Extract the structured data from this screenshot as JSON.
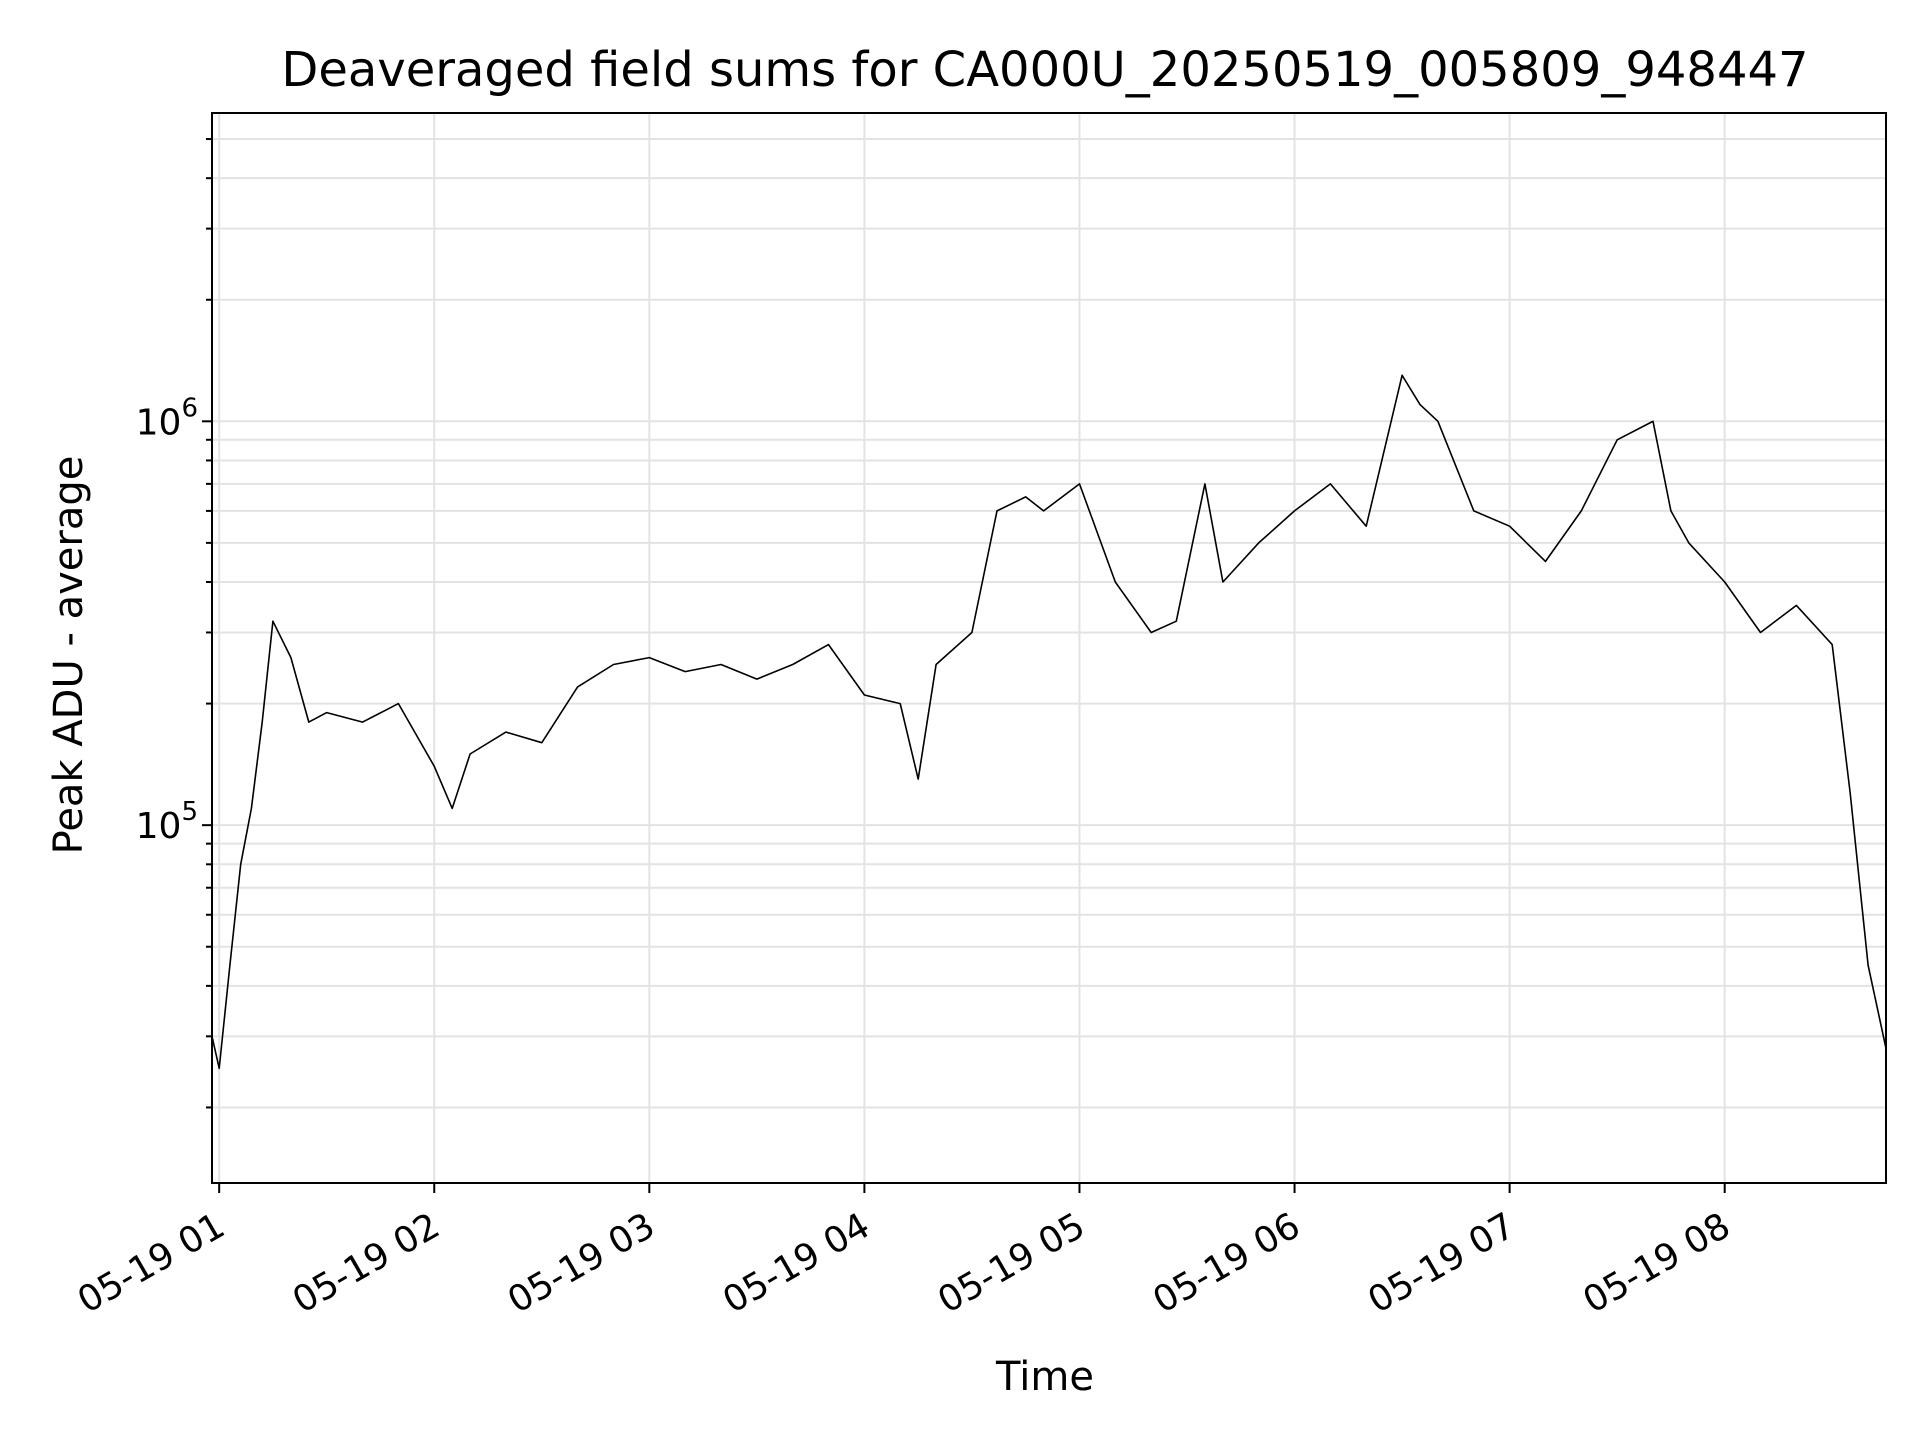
{
  "chart_data": {
    "type": "line",
    "title": "Deaveraged field sums for CA000U_20250519_005809_948447",
    "xlabel": "Time",
    "ylabel": "Peak ADU - average",
    "y_scale": "log",
    "xlim": [
      "2025-05-19 00:58",
      "2025-05-19 08:45"
    ],
    "ylim": [
      13000,
      5800000
    ],
    "x_ticks": [
      {
        "t": "2025-05-19 01:00",
        "label": "05-19 01"
      },
      {
        "t": "2025-05-19 02:00",
        "label": "05-19 02"
      },
      {
        "t": "2025-05-19 03:00",
        "label": "05-19 03"
      },
      {
        "t": "2025-05-19 04:00",
        "label": "05-19 04"
      },
      {
        "t": "2025-05-19 05:00",
        "label": "05-19 05"
      },
      {
        "t": "2025-05-19 06:00",
        "label": "05-19 06"
      },
      {
        "t": "2025-05-19 07:00",
        "label": "05-19 07"
      },
      {
        "t": "2025-05-19 08:00",
        "label": "05-19 08"
      }
    ],
    "y_ticks": [
      {
        "value": 100000,
        "base": "10",
        "exp": "5"
      },
      {
        "value": 1000000,
        "base": "10",
        "exp": "6"
      }
    ],
    "grid": true,
    "series": [
      {
        "color": "#000000",
        "x": [
          "2025-05-19 00:58",
          "2025-05-19 01:00",
          "2025-05-19 01:03",
          "2025-05-19 01:06",
          "2025-05-19 01:09",
          "2025-05-19 01:12",
          "2025-05-19 01:15",
          "2025-05-19 01:20",
          "2025-05-19 01:25",
          "2025-05-19 01:30",
          "2025-05-19 01:40",
          "2025-05-19 01:50",
          "2025-05-19 02:00",
          "2025-05-19 02:05",
          "2025-05-19 02:10",
          "2025-05-19 02:20",
          "2025-05-19 02:30",
          "2025-05-19 02:40",
          "2025-05-19 02:50",
          "2025-05-19 03:00",
          "2025-05-19 03:10",
          "2025-05-19 03:20",
          "2025-05-19 03:30",
          "2025-05-19 03:40",
          "2025-05-19 03:50",
          "2025-05-19 04:00",
          "2025-05-19 04:10",
          "2025-05-19 04:15",
          "2025-05-19 04:20",
          "2025-05-19 04:30",
          "2025-05-19 04:37",
          "2025-05-19 04:45",
          "2025-05-19 04:50",
          "2025-05-19 05:00",
          "2025-05-19 05:10",
          "2025-05-19 05:20",
          "2025-05-19 05:27",
          "2025-05-19 05:35",
          "2025-05-19 05:40",
          "2025-05-19 05:50",
          "2025-05-19 06:00",
          "2025-05-19 06:10",
          "2025-05-19 06:20",
          "2025-05-19 06:30",
          "2025-05-19 06:35",
          "2025-05-19 06:40",
          "2025-05-19 06:50",
          "2025-05-19 07:00",
          "2025-05-19 07:10",
          "2025-05-19 07:20",
          "2025-05-19 07:30",
          "2025-05-19 07:40",
          "2025-05-19 07:45",
          "2025-05-19 07:50",
          "2025-05-19 08:00",
          "2025-05-19 08:10",
          "2025-05-19 08:20",
          "2025-05-19 08:30",
          "2025-05-19 08:35",
          "2025-05-19 08:40",
          "2025-05-19 08:45"
        ],
        "y": [
          30000,
          25000,
          45000,
          80000,
          110000,
          180000,
          320000,
          260000,
          180000,
          190000,
          180000,
          200000,
          140000,
          110000,
          150000,
          170000,
          160000,
          220000,
          250000,
          260000,
          240000,
          250000,
          230000,
          250000,
          280000,
          210000,
          200000,
          130000,
          250000,
          300000,
          600000,
          650000,
          600000,
          700000,
          400000,
          300000,
          320000,
          700000,
          400000,
          500000,
          600000,
          700000,
          550000,
          1300000,
          1100000,
          1000000,
          600000,
          550000,
          450000,
          600000,
          900000,
          1000000,
          600000,
          500000,
          400000,
          300000,
          350000,
          280000,
          120000,
          45000,
          28000
        ]
      }
    ]
  }
}
